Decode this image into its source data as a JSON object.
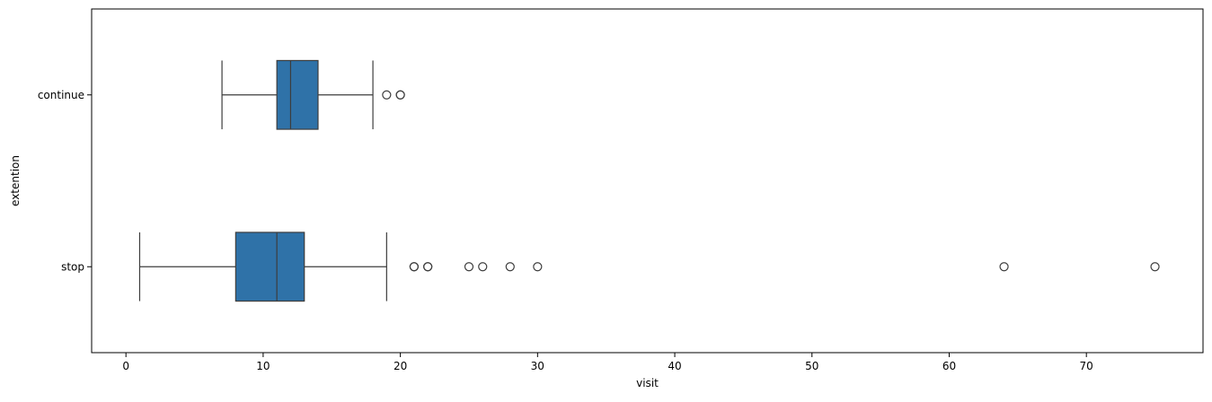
{
  "chart_data": {
    "type": "box",
    "orientation": "horizontal",
    "xlabel": "visit",
    "ylabel": "extention",
    "xlim": [
      -2.5,
      78.5
    ],
    "xticks": [
      0,
      10,
      20,
      30,
      40,
      50,
      60,
      70
    ],
    "xtick_labels": [
      "0",
      "10",
      "20",
      "30",
      "40",
      "50",
      "60",
      "70"
    ],
    "categories": [
      "continue",
      "stop"
    ],
    "grid": false,
    "colors": {
      "box": "#2f72a8",
      "line": "#3d3d3d",
      "outlier": "#3d3d3d"
    },
    "boxes": [
      {
        "category": "continue",
        "whisker_low": 7,
        "q1": 11,
        "median": 12,
        "q3": 14,
        "whisker_high": 18,
        "outliers": [
          19,
          20,
          20
        ]
      },
      {
        "category": "stop",
        "whisker_low": 1,
        "q1": 8,
        "median": 11,
        "q3": 13,
        "whisker_high": 19,
        "outliers": [
          21,
          21,
          22,
          22,
          25,
          26,
          28,
          30,
          64,
          75
        ]
      }
    ]
  }
}
